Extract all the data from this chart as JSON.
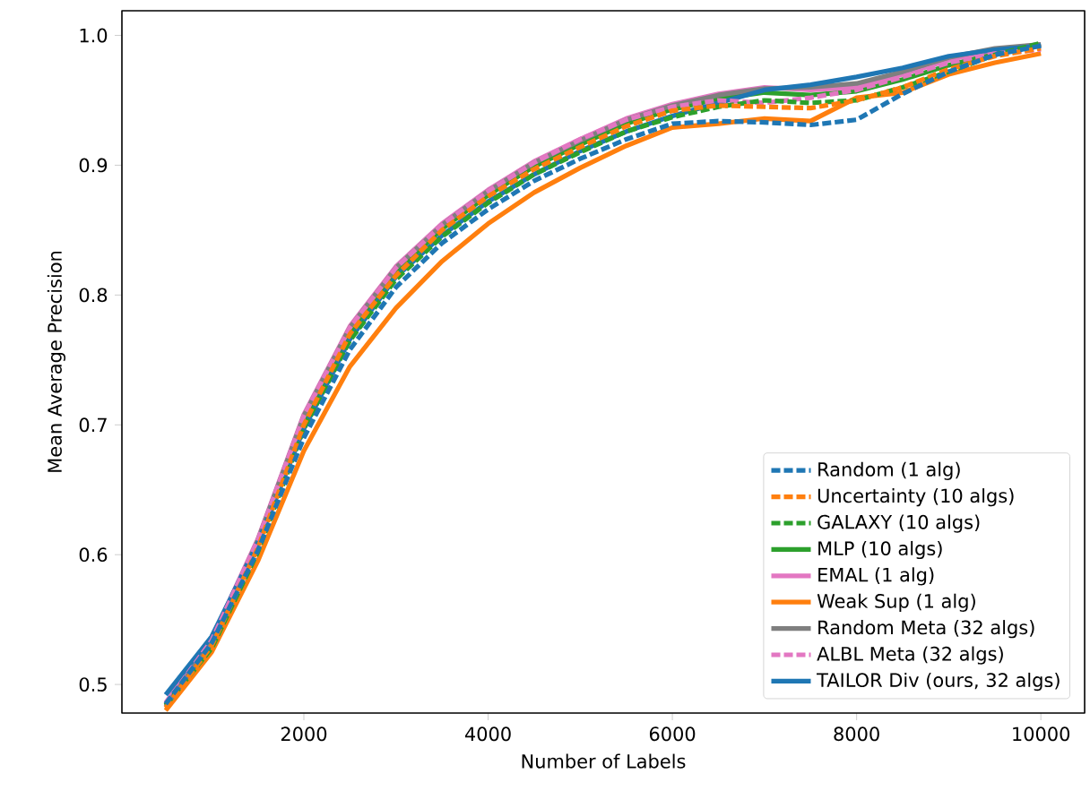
{
  "chart_data": {
    "type": "line",
    "xlabel": "Number of Labels",
    "ylabel": "Mean Average Precision",
    "x": [
      500,
      1000,
      1500,
      2000,
      2500,
      3000,
      3500,
      4000,
      4500,
      5000,
      5500,
      6000,
      6500,
      7000,
      7500,
      8000,
      8500,
      9000,
      9500,
      10000
    ],
    "xlim": [
      25,
      10475
    ],
    "ylim": [
      0.478,
      1.019
    ],
    "xticks": [
      2000,
      4000,
      6000,
      8000,
      10000
    ],
    "yticks": [
      0.5,
      0.6,
      0.7,
      0.8,
      0.9,
      {
        "value": 1.0,
        "label": "1.0"
      }
    ],
    "legend": "bottom right",
    "grid": false,
    "marker": "none",
    "series": [
      {
        "name": "Random (1 alg)",
        "color": "#1f77b4",
        "line_style": "dashed",
        "values": [
          0.485,
          0.532,
          0.603,
          0.69,
          0.758,
          0.806,
          0.84,
          0.866,
          0.888,
          0.905,
          0.92,
          0.932,
          0.934,
          0.933,
          0.931,
          0.935,
          0.955,
          0.972,
          0.985,
          0.992
        ]
      },
      {
        "name": "Uncertainty (10 algs)",
        "color": "#ff7f0e",
        "line_style": "dashed",
        "values": [
          0.482,
          0.53,
          0.605,
          0.7,
          0.77,
          0.815,
          0.85,
          0.876,
          0.897,
          0.914,
          0.93,
          0.942,
          0.946,
          0.945,
          0.944,
          0.95,
          0.96,
          0.974,
          0.984,
          0.99
        ]
      },
      {
        "name": "GALAXY (10 algs)",
        "color": "#2ca02c",
        "line_style": "dashed",
        "values": [
          0.484,
          0.528,
          0.602,
          0.697,
          0.765,
          0.812,
          0.845,
          0.871,
          0.893,
          0.91,
          0.926,
          0.937,
          0.945,
          0.95,
          0.948,
          0.95,
          0.96,
          0.972,
          0.985,
          0.994
        ]
      },
      {
        "name": "MLP (10 algs)",
        "color": "#2ca02c",
        "line_style": "solid",
        "values": [
          0.484,
          0.531,
          0.608,
          0.703,
          0.771,
          0.818,
          0.851,
          0.877,
          0.899,
          0.916,
          0.932,
          0.943,
          0.951,
          0.956,
          0.954,
          0.957,
          0.966,
          0.977,
          0.986,
          0.993
        ]
      },
      {
        "name": "EMAL (1 alg)",
        "color": "#e377c2",
        "line_style": "solid",
        "values": [
          0.486,
          0.535,
          0.612,
          0.708,
          0.776,
          0.822,
          0.855,
          0.881,
          0.903,
          0.92,
          0.936,
          0.947,
          0.955,
          0.96,
          0.958,
          0.96,
          0.97,
          0.981,
          0.989,
          0.993
        ]
      },
      {
        "name": "Weak Sup (1 alg)",
        "color": "#ff7f0e",
        "line_style": "solid",
        "values": [
          0.48,
          0.525,
          0.595,
          0.68,
          0.745,
          0.79,
          0.826,
          0.855,
          0.879,
          0.898,
          0.915,
          0.929,
          0.932,
          0.936,
          0.934,
          0.952,
          0.956,
          0.97,
          0.979,
          0.986
        ]
      },
      {
        "name": "Random Meta (32 algs)",
        "color": "#7f7f7f",
        "line_style": "solid",
        "values": [
          0.483,
          0.533,
          0.611,
          0.707,
          0.775,
          0.821,
          0.854,
          0.88,
          0.902,
          0.919,
          0.935,
          0.946,
          0.954,
          0.959,
          0.96,
          0.963,
          0.972,
          0.983,
          0.99,
          0.993
        ]
      },
      {
        "name": "ALBL Meta (32 algs)",
        "color": "#e377c2",
        "line_style": "dashed",
        "values": [
          0.485,
          0.534,
          0.611,
          0.707,
          0.775,
          0.821,
          0.854,
          0.88,
          0.902,
          0.92,
          0.935,
          0.945,
          0.95,
          0.948,
          0.952,
          0.958,
          0.968,
          0.979,
          0.986,
          0.989
        ]
      },
      {
        "name": "TAILOR Div (ours, 32 algs)",
        "color": "#1f77b4",
        "line_style": "solid",
        "values": [
          0.492,
          0.537,
          0.609,
          0.697,
          0.766,
          0.814,
          0.846,
          0.872,
          0.893,
          0.911,
          0.926,
          0.938,
          0.948,
          0.958,
          0.962,
          0.968,
          0.975,
          0.984,
          0.989,
          0.992
        ]
      }
    ]
  }
}
